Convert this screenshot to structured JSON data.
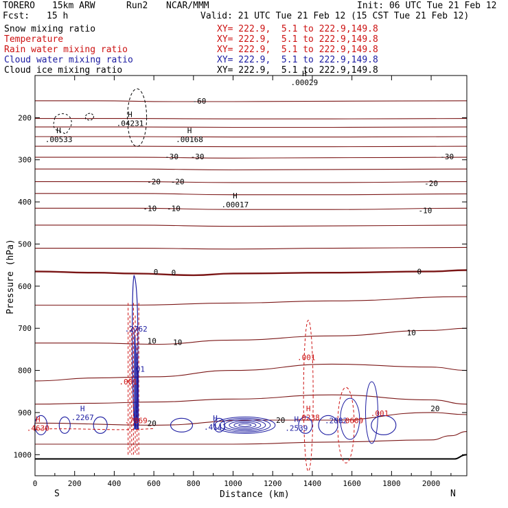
{
  "header": {
    "model": "TORERO",
    "resolution": "15km ARW",
    "run": "Run2",
    "center": "NCAR/MMM",
    "init": "Init: 06 UTC Tue 21 Feb 12",
    "fcst_label": "Fcst:",
    "fcst_value": "15 h",
    "valid": "Valid: 21 UTC Tue 21 Feb 12 (15 CST Tue 21 Feb 12)"
  },
  "fields": [
    {
      "name": "Snow mixing ratio",
      "xy": "XY= 222.9,  5.1 to 222.9,149.8",
      "color": "#000000"
    },
    {
      "name": "Temperature",
      "xy": "XY= 222.9,  5.1 to 222.9,149.8",
      "color": "#cc1111"
    },
    {
      "name": "Rain water mixing ratio",
      "xy": "XY= 222.9,  5.1 to 222.9,149.8",
      "color": "#cc1111"
    },
    {
      "name": "Cloud water mixing ratio",
      "xy": "XY= 222.9,  5.1 to 222.9,149.8",
      "color": "#1a1aa0"
    },
    {
      "name": "Cloud ice mixing ratio",
      "xy": "XY= 222.9,  5.1 to 222.9,149.8",
      "color": "#000000"
    }
  ],
  "chart_data": {
    "type": "cross-section contour",
    "xlabel": "Distance (km)",
    "ylabel": "Pressure (hPa)",
    "xlim": [
      0,
      2180
    ],
    "ylim": [
      1050,
      100
    ],
    "x_ticks": [
      0,
      200,
      400,
      600,
      800,
      1000,
      1200,
      1400,
      1600,
      1800,
      2000
    ],
    "x_tick_labels": [
      "0",
      "200",
      "400",
      "600",
      "800",
      "1000",
      "1200",
      "1400",
      "1600",
      "1800",
      "2000"
    ],
    "y_ticks": [
      200,
      300,
      400,
      500,
      600,
      700,
      800,
      900,
      1000
    ],
    "y_tick_labels": [
      "200",
      "300",
      "400",
      "500",
      "600",
      "700",
      "800",
      "900",
      "1000"
    ],
    "end_labels": {
      "left": "S",
      "right": "N"
    },
    "temperature_isotherms": [
      {
        "label": "-60",
        "x": [
          0,
          300,
          700,
          1000,
          1500,
          2180
        ],
        "p": [
          160,
          160,
          162,
          162,
          161,
          160
        ]
      },
      {
        "label": "",
        "x": [
          0,
          500,
          1000,
          1500,
          2180
        ],
        "p": [
          202,
          202,
          203,
          203,
          202
        ]
      },
      {
        "label": "",
        "x": [
          0,
          500,
          1000,
          1500,
          2180
        ],
        "p": [
          222,
          222,
          223,
          223,
          222
        ]
      },
      {
        "label": "",
        "x": [
          0,
          500,
          1000,
          1500,
          2180
        ],
        "p": [
          245,
          245,
          246,
          246,
          245
        ]
      },
      {
        "label": "",
        "x": [
          0,
          500,
          1000,
          1500,
          2180
        ],
        "p": [
          268,
          268,
          269,
          269,
          268
        ]
      },
      {
        "label": "-30",
        "x": [
          0,
          500,
          1000,
          1500,
          2180
        ],
        "p": [
          294,
          294,
          296,
          295,
          294
        ]
      },
      {
        "label": "",
        "x": [
          0,
          500,
          1000,
          1500,
          2180
        ],
        "p": [
          322,
          322,
          324,
          323,
          322
        ]
      },
      {
        "label": "-20",
        "x": [
          0,
          500,
          1000,
          1500,
          2180
        ],
        "p": [
          352,
          352,
          354,
          354,
          352
        ]
      },
      {
        "label": "",
        "x": [
          0,
          500,
          1000,
          1500,
          2180
        ],
        "p": [
          380,
          380,
          383,
          383,
          381
        ]
      },
      {
        "label": "-10",
        "x": [
          0,
          500,
          1000,
          1500,
          2180
        ],
        "p": [
          415,
          415,
          418,
          418,
          415
        ]
      },
      {
        "label": "",
        "x": [
          0,
          500,
          1000,
          1500,
          2180
        ],
        "p": [
          455,
          455,
          458,
          457,
          455
        ]
      },
      {
        "label": "",
        "x": [
          0,
          500,
          1000,
          1500,
          2180
        ],
        "p": [
          510,
          510,
          512,
          510,
          508
        ]
      },
      {
        "label": "0",
        "x": [
          0,
          300,
          500,
          800,
          1000,
          1500,
          2000,
          2180
        ],
        "p": [
          565,
          568,
          570,
          574,
          570,
          568,
          565,
          562
        ]
      },
      {
        "label": "",
        "x": [
          0,
          500,
          1000,
          1500,
          2180
        ],
        "p": [
          645,
          645,
          640,
          635,
          625
        ]
      },
      {
        "label": "10",
        "x": [
          0,
          300,
          600,
          1000,
          1500,
          2000,
          2180
        ],
        "p": [
          735,
          735,
          738,
          728,
          718,
          705,
          700
        ]
      },
      {
        "label": "",
        "x": [
          0,
          300,
          600,
          1000,
          1500,
          2000,
          2180
        ],
        "p": [
          825,
          818,
          815,
          800,
          785,
          792,
          800
        ]
      },
      {
        "label": "",
        "x": [
          0,
          300,
          600,
          1000,
          1500,
          2000,
          2180
        ],
        "p": [
          880,
          878,
          875,
          868,
          858,
          870,
          880
        ]
      },
      {
        "label": "20",
        "x": [
          0,
          600,
          1100,
          1500,
          2000,
          2180
        ],
        "p": [
          925,
          930,
          918,
          918,
          900,
          905
        ]
      },
      {
        "label": "",
        "x": [
          0,
          1000,
          1500,
          2000,
          2100,
          2180
        ],
        "p": [
          975,
          975,
          970,
          965,
          955,
          945
        ]
      }
    ],
    "temperature_labels": [
      {
        "text": "-60",
        "x": 830,
        "p": 160
      },
      {
        "text": "-30",
        "x": 690,
        "p": 292
      },
      {
        "text": "-30",
        "x": 820,
        "p": 292
      },
      {
        "text": "-30",
        "x": 2080,
        "p": 292
      },
      {
        "text": "-20",
        "x": 600,
        "p": 352
      },
      {
        "text": "-20",
        "x": 720,
        "p": 352
      },
      {
        "text": "-20",
        "x": 2000,
        "p": 356
      },
      {
        "text": "-10",
        "x": 580,
        "p": 415
      },
      {
        "text": "-10",
        "x": 700,
        "p": 415
      },
      {
        "text": "-10",
        "x": 1970,
        "p": 420
      },
      {
        "text": "0",
        "x": 610,
        "p": 566
      },
      {
        "text": "0",
        "x": 700,
        "p": 568
      },
      {
        "text": "0",
        "x": 1940,
        "p": 565
      },
      {
        "text": "10",
        "x": 590,
        "p": 730
      },
      {
        "text": "10",
        "x": 720,
        "p": 733
      },
      {
        "text": "10",
        "x": 1900,
        "p": 710
      },
      {
        "text": "20",
        "x": 590,
        "p": 925
      },
      {
        "text": "20",
        "x": 1240,
        "p": 918
      },
      {
        "text": "20",
        "x": 2020,
        "p": 890
      }
    ],
    "extrema_labels": [
      {
        "text": "H",
        "value": ".00533",
        "x": 120,
        "p": 245,
        "color": "#000000"
      },
      {
        "text": "H",
        "value": ".04231",
        "x": 480,
        "p": 207,
        "color": "#000000"
      },
      {
        "text": "H",
        "value": ".00168",
        "x": 780,
        "p": 245,
        "color": "#000000"
      },
      {
        "text": "H",
        "value": ".00017",
        "x": 1010,
        "p": 400,
        "color": "#000000"
      },
      {
        "text": "H",
        "value": ".00029",
        "x": 1360,
        "p": 110,
        "color": "#000000"
      },
      {
        "text": "",
        "value": ".2762",
        "x": 510,
        "p": 695,
        "color": "#1a1aa0"
      },
      {
        "text": "",
        "value": ".001",
        "x": 1370,
        "p": 762,
        "color": "#cc1111"
      },
      {
        "text": "",
        "value": ".01",
        "x": 520,
        "p": 790,
        "color": "#1a1aa0"
      },
      {
        "text": "",
        "value": ".001",
        "x": 470,
        "p": 820,
        "color": "#cc1111"
      },
      {
        "text": "H",
        "value": ".2267",
        "x": 240,
        "p": 905,
        "color": "#1a1aa0"
      },
      {
        "text": "",
        "value": ".7869",
        "x": 510,
        "p": 912,
        "color": "#cc1111"
      },
      {
        "text": "H",
        "value": ".4141",
        "x": 910,
        "p": 928,
        "color": "#1a1aa0"
      },
      {
        "text": "H",
        "value": ".0238",
        "x": 1380,
        "p": 905,
        "color": "#cc1111"
      },
      {
        "text": "H",
        "value": ".2539",
        "x": 1320,
        "p": 930,
        "color": "#1a1aa0"
      },
      {
        "text": "",
        "value": ".2882",
        "x": 1520,
        "p": 912,
        "color": "#1a1aa0"
      },
      {
        "text": "",
        "value": ".0609",
        "x": 1600,
        "p": 912,
        "color": "#cc1111"
      },
      {
        "text": "",
        "value": ".001",
        "x": 1740,
        "p": 895,
        "color": "#cc1111"
      },
      {
        "text": "H",
        "value": ".4630",
        "x": 15,
        "p": 930,
        "color": "#cc1111"
      }
    ]
  }
}
